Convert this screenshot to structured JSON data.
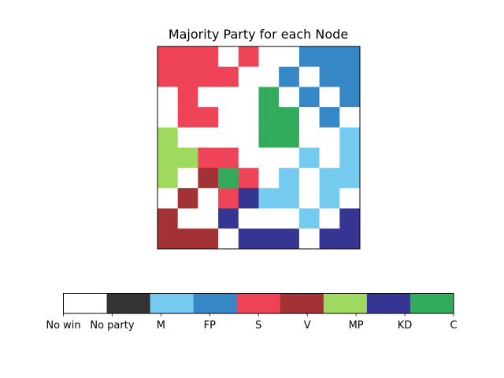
{
  "chart_data": [
    {
      "type": "heatmap",
      "title": "Majority Party for each Node",
      "xlabel": "",
      "ylabel": "",
      "axes_ticks": "none",
      "grid": false,
      "rows": 10,
      "cols": 10,
      "value_labels": [
        "No win",
        "No party",
        "M",
        "FP",
        "S",
        "V",
        "MP",
        "KD",
        "C"
      ],
      "colors": [
        "#ffffff",
        "#333333",
        "#75caf0",
        "#3687c6",
        "#ef4358",
        "#a33237",
        "#9fd95f",
        "#353693",
        "#33ab5c"
      ],
      "values": [
        [
          4,
          4,
          4,
          0,
          4,
          0,
          0,
          3,
          3,
          3
        ],
        [
          4,
          4,
          4,
          4,
          0,
          0,
          3,
          0,
          3,
          3
        ],
        [
          0,
          4,
          0,
          0,
          0,
          8,
          0,
          3,
          0,
          3
        ],
        [
          0,
          4,
          4,
          0,
          0,
          8,
          8,
          0,
          3,
          0
        ],
        [
          6,
          0,
          0,
          0,
          0,
          8,
          8,
          0,
          0,
          2
        ],
        [
          6,
          6,
          4,
          4,
          0,
          0,
          0,
          2,
          0,
          2
        ],
        [
          6,
          0,
          5,
          8,
          4,
          0,
          2,
          0,
          2,
          2
        ],
        [
          0,
          5,
          0,
          4,
          7,
          2,
          2,
          0,
          2,
          0
        ],
        [
          5,
          0,
          0,
          7,
          0,
          0,
          0,
          2,
          0,
          7
        ],
        [
          5,
          5,
          5,
          0,
          7,
          7,
          7,
          0,
          7,
          7
        ]
      ]
    },
    {
      "type": "colorbar",
      "orientation": "horizontal",
      "tick_labels": [
        "No win",
        "No party",
        "M",
        "FP",
        "S",
        "V",
        "MP",
        "KD",
        "C"
      ],
      "colors": [
        "#ffffff",
        "#333333",
        "#75caf0",
        "#3687c6",
        "#ef4358",
        "#a33237",
        "#9fd95f",
        "#353693",
        "#33ab5c"
      ]
    }
  ]
}
